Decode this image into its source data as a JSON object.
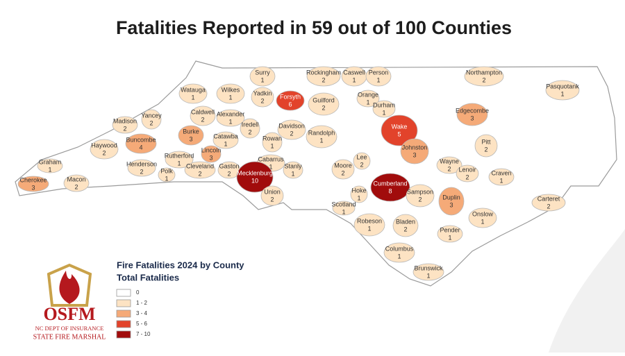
{
  "title": "Fatalities Reported in 59 out of 100 Counties",
  "counties": [
    {
      "name": "Surry",
      "fatalities": 1,
      "color": "#fde3c3"
    },
    {
      "name": "Rockingham",
      "fatalities": 2,
      "color": "#fde3c3"
    },
    {
      "name": "Caswell",
      "fatalities": 1,
      "color": "#fde3c3"
    },
    {
      "name": "Person",
      "fatalities": 1,
      "color": "#fde3c3"
    },
    {
      "name": "Northampton",
      "fatalities": 2,
      "color": "#fde3c3"
    },
    {
      "name": "Pasquotank",
      "fatalities": 1,
      "color": "#fde3c3"
    },
    {
      "name": "Watauga",
      "fatalities": 1,
      "color": "#fde3c3"
    },
    {
      "name": "Wilkes",
      "fatalities": 1,
      "color": "#fde3c3"
    },
    {
      "name": "Yadkin",
      "fatalities": 2,
      "color": "#fde3c3"
    },
    {
      "name": "Forsyth",
      "fatalities": 6,
      "color": "#e2432b"
    },
    {
      "name": "Guilford",
      "fatalities": 2,
      "color": "#fde3c3"
    },
    {
      "name": "Orange",
      "fatalities": 1,
      "color": "#fde3c3"
    },
    {
      "name": "Durham",
      "fatalities": 1,
      "color": "#fde3c3"
    },
    {
      "name": "Edgecombe",
      "fatalities": 3,
      "color": "#f5aa78"
    },
    {
      "name": "Caldwell",
      "fatalities": 2,
      "color": "#fde3c3"
    },
    {
      "name": "Alexander",
      "fatalities": 1,
      "color": "#fde3c3"
    },
    {
      "name": "Yancey",
      "fatalities": 2,
      "color": "#fde3c3"
    },
    {
      "name": "Madison",
      "fatalities": 2,
      "color": "#fde3c3"
    },
    {
      "name": "Iredell",
      "fatalities": 2,
      "color": "#fde3c3"
    },
    {
      "name": "Davidson",
      "fatalities": 2,
      "color": "#fde3c3"
    },
    {
      "name": "Wake",
      "fatalities": 5,
      "color": "#e2432b"
    },
    {
      "name": "Burke",
      "fatalities": 3,
      "color": "#f5aa78"
    },
    {
      "name": "Catawba",
      "fatalities": 1,
      "color": "#fde3c3"
    },
    {
      "name": "Randolph",
      "fatalities": 1,
      "color": "#fde3c3"
    },
    {
      "name": "Buncombe",
      "fatalities": 4,
      "color": "#f5aa78"
    },
    {
      "name": "Haywood",
      "fatalities": 2,
      "color": "#fde3c3"
    },
    {
      "name": "Rowan",
      "fatalities": 1,
      "color": "#fde3c3"
    },
    {
      "name": "Johnston",
      "fatalities": 3,
      "color": "#f5aa78"
    },
    {
      "name": "Pitt",
      "fatalities": 2,
      "color": "#fde3c3"
    },
    {
      "name": "Lincoln",
      "fatalities": 3,
      "color": "#f5aa78"
    },
    {
      "name": "Rutherford",
      "fatalities": 1,
      "color": "#fde3c3"
    },
    {
      "name": "Henderson",
      "fatalities": 2,
      "color": "#fde3c3"
    },
    {
      "name": "Cabarrus",
      "fatalities": 1,
      "color": "#fde3c3"
    },
    {
      "name": "Lee",
      "fatalities": 2,
      "color": "#fde3c3"
    },
    {
      "name": "Wayne",
      "fatalities": 2,
      "color": "#fde3c3"
    },
    {
      "name": "Graham",
      "fatalities": 1,
      "color": "#fde3c3"
    },
    {
      "name": "Cleveland",
      "fatalities": 2,
      "color": "#fde3c3"
    },
    {
      "name": "Gaston",
      "fatalities": 2,
      "color": "#fde3c3"
    },
    {
      "name": "Stanly",
      "fatalities": 1,
      "color": "#fde3c3"
    },
    {
      "name": "Moore",
      "fatalities": 2,
      "color": "#fde3c3"
    },
    {
      "name": "Lenoir",
      "fatalities": 2,
      "color": "#fde3c3"
    },
    {
      "name": "Craven",
      "fatalities": 1,
      "color": "#fde3c3"
    },
    {
      "name": "Polk",
      "fatalities": 1,
      "color": "#fde3c3"
    },
    {
      "name": "Mecklenburg",
      "fatalities": 10,
      "color": "#a10c0c"
    },
    {
      "name": "Cherokee",
      "fatalities": 3,
      "color": "#f5aa78"
    },
    {
      "name": "Macon",
      "fatalities": 2,
      "color": "#fde3c3"
    },
    {
      "name": "Hoke",
      "fatalities": 1,
      "color": "#fde3c3"
    },
    {
      "name": "Cumberland",
      "fatalities": 8,
      "color": "#a10c0c"
    },
    {
      "name": "Sampson",
      "fatalities": 2,
      "color": "#fde3c3"
    },
    {
      "name": "Duplin",
      "fatalities": 3,
      "color": "#f5aa78"
    },
    {
      "name": "Union",
      "fatalities": 2,
      "color": "#fde3c3"
    },
    {
      "name": "Carteret",
      "fatalities": 2,
      "color": "#fde3c3"
    },
    {
      "name": "Scotland",
      "fatalities": 1,
      "color": "#fde3c3"
    },
    {
      "name": "Onslow",
      "fatalities": 1,
      "color": "#fde3c3"
    },
    {
      "name": "Robeson",
      "fatalities": 1,
      "color": "#fde3c3"
    },
    {
      "name": "Bladen",
      "fatalities": 2,
      "color": "#fde3c3"
    },
    {
      "name": "Pender",
      "fatalities": 1,
      "color": "#fde3c3"
    },
    {
      "name": "Columbus",
      "fatalities": 1,
      "color": "#fde3c3"
    },
    {
      "name": "Brunswick",
      "fatalities": 1,
      "color": "#fde3c3"
    }
  ],
  "legend": {
    "title": "Fire Fatalities 2024 by County",
    "subtitle": "Total Fatalities",
    "items": [
      {
        "label": "0",
        "color": "#ffffff"
      },
      {
        "label": "1 - 2",
        "color": "#fde3c3"
      },
      {
        "label": "3 - 4",
        "color": "#f5aa78"
      },
      {
        "label": "5 - 6",
        "color": "#e2432b"
      },
      {
        "label": "7 - 10",
        "color": "#a10c0c"
      }
    ]
  },
  "logo": {
    "acronym": "OSFM",
    "line1": "NC DEPT OF INSURANCE",
    "line2": "STATE FIRE MARSHAL"
  }
}
